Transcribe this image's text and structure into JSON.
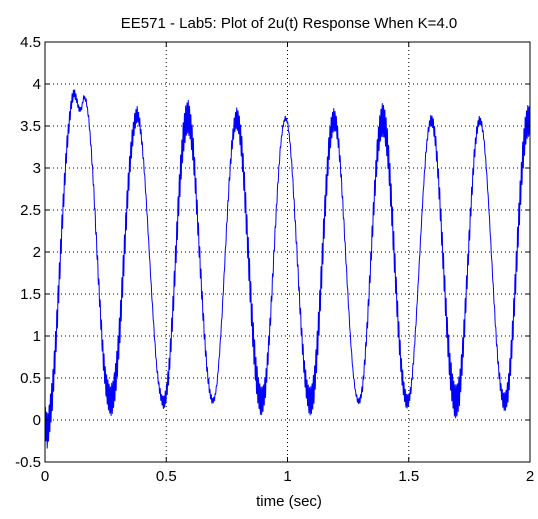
{
  "chart_data": {
    "type": "line",
    "title": "EE571 - Lab5:  Plot of 2u(t) Response When K=4.0",
    "xlabel": "time (sec)",
    "ylabel": "",
    "xlim": [
      0,
      2
    ],
    "ylim": [
      -0.5,
      4.5
    ],
    "xticks": [
      0,
      0.5,
      1,
      1.5,
      2
    ],
    "xtick_labels": [
      "0",
      "0.5",
      "1",
      "1.5",
      "2"
    ],
    "yticks": [
      -0.5,
      0,
      0.5,
      1,
      1.5,
      2,
      2.5,
      3,
      3.5,
      4,
      4.5
    ],
    "ytick_labels": [
      "-0.5",
      "0",
      "0.5",
      "1",
      "1.5",
      "2",
      "2.5",
      "3",
      "3.5",
      "4",
      "4.5"
    ],
    "grid": true,
    "grid_style": "dotted",
    "series": [
      {
        "color": "#0000ff",
        "x": [
          0,
          0.01,
          0.02,
          0.03,
          0.04,
          0.05,
          0.06,
          0.07,
          0.08,
          0.09,
          0.1,
          0.11,
          0.12,
          0.13,
          0.14,
          0.15,
          0.16,
          0.17,
          0.18,
          0.19,
          0.2,
          0.21,
          0.22,
          0.23,
          0.24,
          0.25,
          0.26,
          0.27,
          0.28,
          0.29,
          0.3,
          0.31,
          0.32,
          0.33,
          0.34,
          0.35,
          0.36,
          0.37,
          0.38,
          0.39,
          0.4,
          0.41,
          0.42,
          0.43,
          0.44,
          0.45,
          0.46,
          0.47,
          0.48,
          0.49,
          0.5,
          0.51,
          0.52,
          0.53,
          0.54,
          0.55,
          0.56,
          0.57,
          0.58,
          0.59,
          0.6,
          0.61,
          0.62,
          0.63,
          0.64,
          0.65,
          0.66,
          0.67,
          0.68,
          0.69,
          0.7,
          0.71,
          0.72,
          0.73,
          0.74,
          0.75,
          0.76,
          0.77,
          0.78,
          0.79,
          0.8,
          0.81,
          0.82,
          0.83,
          0.84,
          0.85,
          0.86,
          0.87,
          0.88,
          0.89,
          0.9,
          0.91,
          0.92,
          0.93,
          0.94,
          0.95,
          0.96,
          0.97,
          0.98,
          0.99,
          1.0,
          1.01,
          1.02,
          1.03,
          1.04,
          1.05,
          1.06,
          1.07,
          1.08,
          1.09,
          1.1,
          1.11,
          1.12,
          1.13,
          1.14,
          1.15,
          1.16,
          1.17,
          1.18,
          1.19,
          1.2,
          1.21,
          1.22,
          1.23,
          1.24,
          1.25,
          1.26,
          1.27,
          1.28,
          1.29,
          1.3,
          1.31,
          1.32,
          1.33,
          1.34,
          1.35,
          1.36,
          1.37,
          1.38,
          1.39,
          1.4,
          1.41,
          1.42,
          1.43,
          1.44,
          1.45,
          1.46,
          1.47,
          1.48,
          1.49,
          1.5,
          1.51,
          1.52,
          1.53,
          1.54,
          1.55,
          1.56,
          1.57,
          1.58,
          1.59,
          1.6,
          1.61,
          1.62,
          1.63,
          1.64,
          1.65,
          1.66,
          1.67,
          1.68,
          1.69,
          1.7,
          1.71,
          1.72,
          1.73,
          1.74,
          1.75,
          1.76,
          1.77,
          1.78,
          1.79,
          1.8,
          1.81,
          1.82,
          1.83,
          1.84,
          1.85,
          1.86,
          1.87,
          1.88,
          1.89,
          1.9,
          1.91,
          1.92,
          1.93,
          1.94,
          1.95,
          1.96,
          1.97,
          1.98,
          1.99,
          2.0
        ],
        "y": [
          0.0,
          -0.15,
          0.05,
          0.3,
          0.7,
          1.2,
          1.75,
          2.3,
          2.8,
          3.25,
          3.55,
          3.8,
          3.9,
          3.82,
          3.7,
          3.7,
          3.85,
          3.8,
          3.6,
          3.25,
          2.8,
          2.25,
          1.7,
          1.2,
          0.75,
          0.45,
          0.3,
          0.22,
          0.28,
          0.45,
          0.75,
          1.15,
          1.65,
          2.15,
          2.65,
          3.05,
          3.35,
          3.55,
          3.65,
          3.55,
          3.3,
          2.95,
          2.5,
          2.0,
          1.5,
          1.05,
          0.65,
          0.4,
          0.25,
          0.2,
          0.3,
          0.55,
          0.95,
          1.45,
          2.0,
          2.55,
          3.0,
          3.35,
          3.55,
          3.62,
          3.5,
          3.25,
          2.85,
          2.35,
          1.85,
          1.35,
          0.9,
          0.55,
          0.32,
          0.22,
          0.26,
          0.45,
          0.8,
          1.25,
          1.8,
          2.35,
          2.85,
          3.25,
          3.5,
          3.6,
          3.52,
          3.28,
          2.9,
          2.4,
          1.9,
          1.38,
          0.92,
          0.56,
          0.33,
          0.22,
          0.25,
          0.42,
          0.78,
          1.22,
          1.75,
          2.3,
          2.8,
          3.22,
          3.48,
          3.6,
          3.55,
          3.32,
          2.95,
          2.45,
          1.95,
          1.42,
          0.95,
          0.58,
          0.34,
          0.22,
          0.24,
          0.4,
          0.75,
          1.2,
          1.72,
          2.28,
          2.78,
          3.2,
          3.46,
          3.58,
          3.54,
          3.32,
          2.96,
          2.48,
          1.96,
          1.44,
          0.96,
          0.58,
          0.34,
          0.22,
          0.24,
          0.4,
          0.74,
          1.18,
          1.7,
          2.25,
          2.75,
          3.18,
          3.45,
          3.58,
          3.54,
          3.33,
          2.98,
          2.5,
          1.98,
          1.46,
          0.98,
          0.6,
          0.35,
          0.22,
          0.23,
          0.38,
          0.72,
          1.16,
          1.68,
          2.22,
          2.73,
          3.16,
          3.44,
          3.57,
          3.54,
          3.34,
          2.99,
          2.52,
          2.0,
          1.48,
          1.0,
          0.61,
          0.36,
          0.22,
          0.23,
          0.37,
          0.7,
          1.14,
          1.66,
          2.2,
          2.71,
          3.14,
          3.43,
          3.57,
          3.54,
          3.35,
          3.0,
          2.54,
          2.02,
          1.5,
          1.01,
          0.62,
          0.36,
          0.22,
          0.22,
          0.36,
          0.68,
          1.12,
          1.64,
          2.18,
          2.69,
          3.12,
          3.42,
          3.56,
          3.55
        ],
        "ripple_amplitude": 0.2
      }
    ]
  }
}
